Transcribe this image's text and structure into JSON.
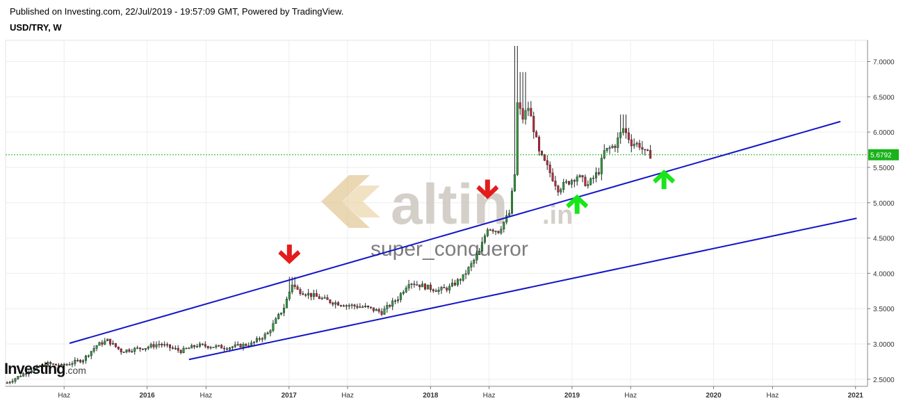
{
  "header": {
    "published": "Published on Investing.com, 22/Jul/2019 - 19:57:09 GMT, Powered by TradingView.",
    "symbol": "USD/TRY, W"
  },
  "watermark": {
    "brand": "altin",
    "suffix": ".in",
    "user": "super_conqueror"
  },
  "logo": {
    "name": "Investing",
    "suffix": ".com"
  },
  "colors": {
    "up": "#2e9e3c",
    "down": "#c8243b",
    "trendline": "#1414c8",
    "price_line": "#19b319",
    "arrow_down": "#e41c1c",
    "arrow_up": "#19e619"
  },
  "chart_data": {
    "type": "candlestick",
    "title": "USD/TRY, W",
    "ylim": [
      2.4,
      7.3
    ],
    "y_ticks": [
      "7.0000",
      "6.5000",
      "6.0000",
      "5.5000",
      "5.0000",
      "4.5000",
      "4.0000",
      "3.5000",
      "3.0000",
      "2.5000"
    ],
    "y_tick_values": [
      7.0,
      6.5,
      6.0,
      5.5,
      5.0,
      4.5,
      4.0,
      3.5,
      3.0,
      2.5
    ],
    "x_ticks": [
      "Haz",
      "2016",
      "Haz",
      "2017",
      "Haz",
      "2018",
      "Haz",
      "2019",
      "Haz",
      "2020",
      "Haz",
      "2021"
    ],
    "x_tick_dates": [
      "2015-06-01",
      "2016-01-01",
      "2016-06-01",
      "2017-01-01",
      "2017-06-01",
      "2018-01-01",
      "2018-06-01",
      "2019-01-01",
      "2019-06-01",
      "2020-01-01",
      "2020-06-01",
      "2021-01-01"
    ],
    "x_range": [
      "2015-01-01",
      "2021-02-01"
    ],
    "last_price": 5.6792,
    "last_price_label": "5.6792",
    "anchors": [
      [
        "2015-01-05",
        2.45
      ],
      [
        "2015-03-02",
        2.62
      ],
      [
        "2015-04-20",
        2.72
      ],
      [
        "2015-05-25",
        2.69
      ],
      [
        "2015-07-20",
        2.78
      ],
      [
        "2015-08-24",
        2.98
      ],
      [
        "2015-09-21",
        3.05
      ],
      [
        "2015-10-26",
        2.9
      ],
      [
        "2015-12-28",
        2.95
      ],
      [
        "2016-02-01",
        3.0
      ],
      [
        "2016-03-28",
        2.9
      ],
      [
        "2016-05-09",
        2.98
      ],
      [
        "2016-07-25",
        2.95
      ],
      [
        "2016-09-26",
        3.0
      ],
      [
        "2016-11-07",
        3.15
      ],
      [
        "2016-12-19",
        3.52
      ],
      [
        "2017-01-09",
        3.85
      ],
      [
        "2017-01-23",
        3.76
      ],
      [
        "2017-03-06",
        3.68
      ],
      [
        "2017-04-17",
        3.6
      ],
      [
        "2017-05-29",
        3.55
      ],
      [
        "2017-07-17",
        3.52
      ],
      [
        "2017-08-28",
        3.45
      ],
      [
        "2017-10-09",
        3.65
      ],
      [
        "2017-11-06",
        3.88
      ],
      [
        "2017-12-25",
        3.8
      ],
      [
        "2018-01-22",
        3.76
      ],
      [
        "2018-02-19",
        3.8
      ],
      [
        "2018-03-26",
        3.95
      ],
      [
        "2018-05-07",
        4.3
      ],
      [
        "2018-05-28",
        4.65
      ],
      [
        "2018-06-25",
        4.6
      ],
      [
        "2018-07-23",
        4.85
      ],
      [
        "2018-08-06",
        5.4
      ],
      [
        "2018-08-13",
        6.4
      ],
      [
        "2018-08-27",
        6.2
      ],
      [
        "2018-09-10",
        6.35
      ],
      [
        "2018-09-24",
        6.05
      ],
      [
        "2018-10-08",
        5.7
      ],
      [
        "2018-10-29",
        5.5
      ],
      [
        "2018-11-26",
        5.2
      ],
      [
        "2018-12-24",
        5.3
      ],
      [
        "2019-01-14",
        5.38
      ],
      [
        "2019-02-11",
        5.25
      ],
      [
        "2019-03-11",
        5.45
      ],
      [
        "2019-03-25",
        5.72
      ],
      [
        "2019-04-22",
        5.82
      ],
      [
        "2019-05-13",
        6.05
      ],
      [
        "2019-06-03",
        5.85
      ],
      [
        "2019-06-24",
        5.82
      ],
      [
        "2019-07-08",
        5.7
      ],
      [
        "2019-07-22",
        5.68
      ]
    ],
    "trendlines": [
      {
        "from": [
          "2015-06-15",
          3.01
        ],
        "to": [
          "2020-11-23",
          6.15
        ]
      },
      {
        "from": [
          "2016-04-18",
          2.78
        ],
        "to": [
          "2021-01-04",
          4.78
        ]
      }
    ],
    "arrows": [
      {
        "dir": "down",
        "date": "2017-01-02",
        "price": 4.25
      },
      {
        "dir": "down",
        "date": "2018-05-28",
        "price": 5.17
      },
      {
        "dir": "up",
        "date": "2019-01-14",
        "price": 5.0
      },
      {
        "dir": "up",
        "date": "2019-08-26",
        "price": 5.35
      }
    ]
  }
}
